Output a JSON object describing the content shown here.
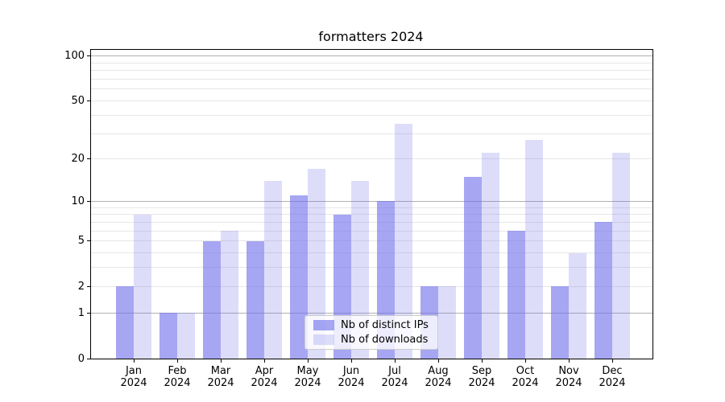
{
  "title": "formatters 2024",
  "legend": {
    "items": [
      {
        "label": "Nb of distinct IPs"
      },
      {
        "label": "Nb of downloads"
      }
    ]
  },
  "chart_data": {
    "type": "bar",
    "title": "formatters 2024",
    "categories": [
      "Jan",
      "Feb",
      "Mar",
      "Apr",
      "May",
      "Jun",
      "Jul",
      "Aug",
      "Sep",
      "Oct",
      "Nov",
      "Dec"
    ],
    "year_label": "2024",
    "series": [
      {
        "name": "Nb of distinct IPs",
        "color": "rgba(110,110,235,0.61)",
        "values": [
          2,
          1,
          5,
          5,
          11,
          8,
          10,
          2,
          15,
          6,
          2,
          7
        ]
      },
      {
        "name": "Nb of downloads",
        "color": "rgba(110,110,235,0.23)",
        "values": [
          8,
          1,
          6,
          14,
          17,
          14,
          35,
          2,
          22,
          27,
          4,
          22
        ]
      }
    ],
    "xlabel": "",
    "ylabel": "",
    "yscale": "log1p",
    "ylim": [
      0,
      110
    ],
    "y_ticks": [
      0,
      1,
      2,
      5,
      10,
      20,
      50,
      100
    ],
    "y_major_grid": [
      1,
      10,
      100
    ],
    "y_minor_grid": [
      2,
      3,
      4,
      5,
      6,
      7,
      8,
      9,
      20,
      30,
      40,
      50,
      60,
      70,
      80,
      90
    ],
    "grid": "on",
    "legend_position": "lower center",
    "colors": {
      "major_grid": "#b1b1b1",
      "minor_grid": "#e7e7e7",
      "spine": "#000000",
      "bar_base": "#6e6eeb"
    }
  }
}
